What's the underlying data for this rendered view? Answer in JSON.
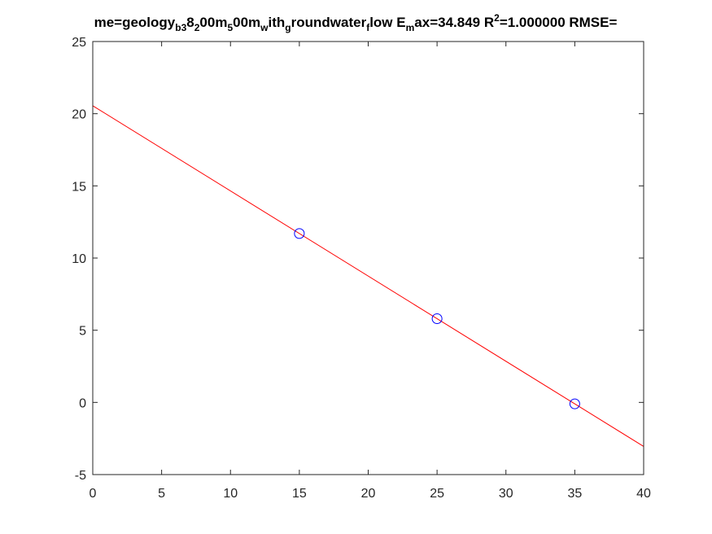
{
  "chart_data": {
    "type": "scatter",
    "title_segments": [
      {
        "text": "me=geology",
        "shift": "base"
      },
      {
        "text": "b3",
        "shift": "sub"
      },
      {
        "text": "8",
        "shift": "base"
      },
      {
        "text": "2",
        "shift": "sub"
      },
      {
        "text": "00m",
        "shift": "base"
      },
      {
        "text": "5",
        "shift": "sub"
      },
      {
        "text": "00m",
        "shift": "base"
      },
      {
        "text": "w",
        "shift": "sub"
      },
      {
        "text": "ith",
        "shift": "base"
      },
      {
        "text": "g",
        "shift": "sub"
      },
      {
        "text": "roundwater",
        "shift": "base"
      },
      {
        "text": "f",
        "shift": "sub"
      },
      {
        "text": "low E",
        "shift": "base"
      },
      {
        "text": "m",
        "shift": "sub"
      },
      {
        "text": "ax=34.849 R",
        "shift": "base"
      },
      {
        "text": "2",
        "shift": "sup"
      },
      {
        "text": "=1.000000 RMSE=",
        "shift": "base"
      }
    ],
    "xlim": [
      0,
      40
    ],
    "ylim": [
      -5,
      25
    ],
    "xticks": [
      0,
      5,
      10,
      15,
      20,
      25,
      30,
      35,
      40
    ],
    "yticks": [
      -5,
      0,
      5,
      10,
      15,
      20,
      25
    ],
    "grid": false,
    "series": [
      {
        "kind": "points",
        "marker": "circle",
        "color": "#0000ff",
        "x": [
          15,
          25,
          35
        ],
        "y": [
          11.7,
          5.8,
          -0.1
        ]
      },
      {
        "kind": "line",
        "color": "#ff0000",
        "x": [
          0,
          40
        ],
        "y": [
          20.55,
          -3.05
        ]
      }
    ]
  }
}
